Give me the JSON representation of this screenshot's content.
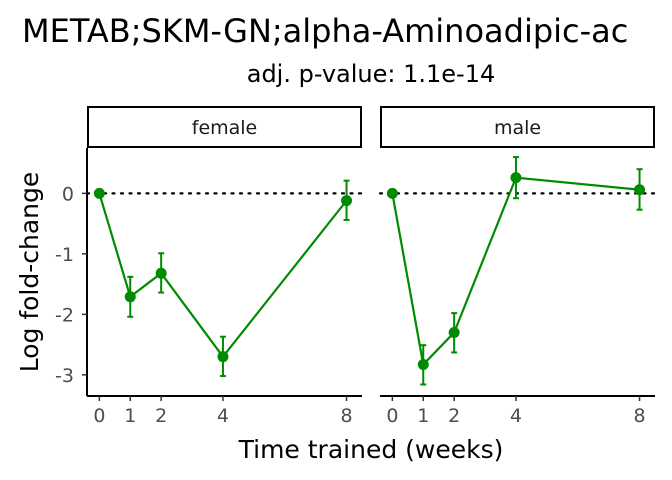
{
  "chart_data": {
    "type": "line",
    "title": "METAB;SKM-GN;alpha-Aminoadipic-ac",
    "subtitle": "adj. p-value: 1.1e-14",
    "xlabel": "Time trained (weeks)",
    "ylabel": "Log fold-change",
    "xlim": [
      -0.4,
      8.5
    ],
    "ylim": [
      -3.35,
      0.75
    ],
    "x_ticks": [
      0,
      1,
      2,
      4,
      8
    ],
    "y_ticks": [
      0,
      -1,
      -2,
      -3
    ],
    "reference_line": 0,
    "line_color": "#008B00",
    "panels": [
      {
        "strip_label": "female",
        "x": [
          0,
          1,
          2,
          4,
          8
        ],
        "y": [
          0,
          -1.71,
          -1.32,
          -2.7,
          -0.12
        ],
        "err_low": [
          0,
          -2.04,
          -1.64,
          -3.02,
          -0.44
        ],
        "err_high": [
          0,
          -1.38,
          -0.99,
          -2.37,
          0.21
        ]
      },
      {
        "strip_label": "male",
        "x": [
          0,
          1,
          2,
          4,
          8
        ],
        "y": [
          0,
          -2.83,
          -2.3,
          0.26,
          0.06
        ],
        "err_low": [
          0,
          -3.16,
          -2.63,
          -0.08,
          -0.27
        ],
        "err_high": [
          0,
          -2.51,
          -1.98,
          0.6,
          0.4
        ]
      }
    ]
  }
}
